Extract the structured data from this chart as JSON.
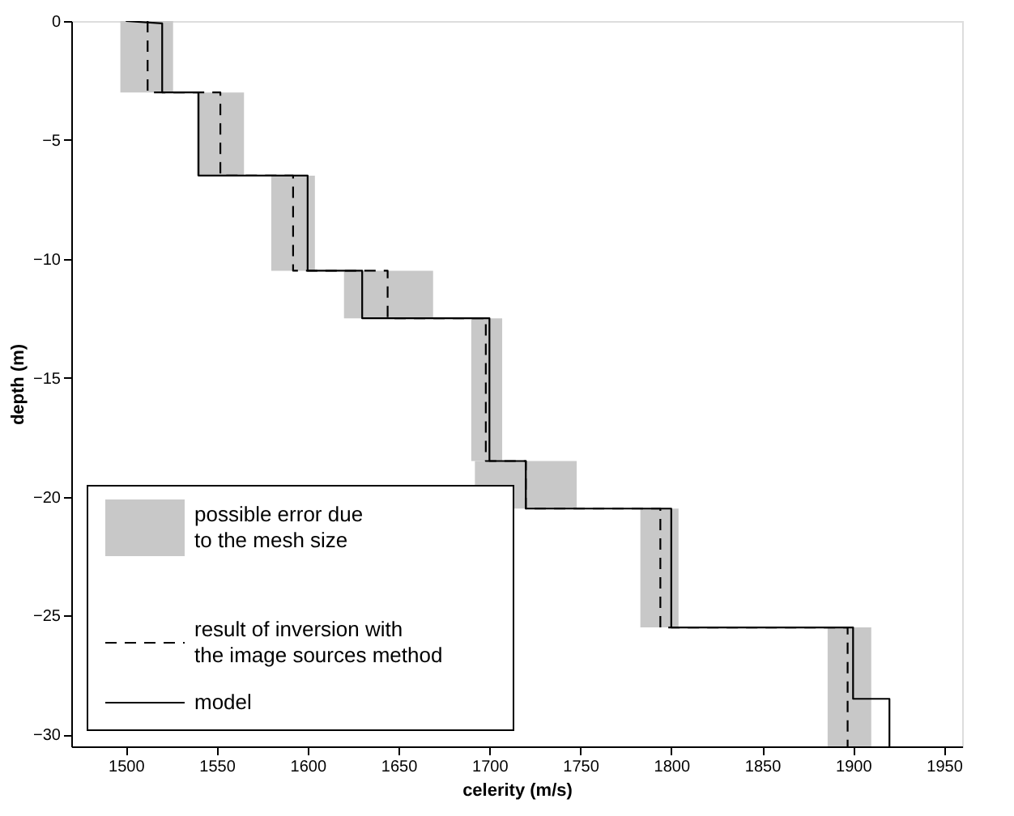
{
  "chart_data": {
    "type": "line",
    "xlabel": "celerity (m/s)",
    "ylabel": "depth (m)",
    "xlim": [
      1470,
      1960
    ],
    "xticks": [
      1500,
      1550,
      1600,
      1650,
      1700,
      1750,
      1800,
      1850,
      1900,
      1950
    ],
    "ylim": [
      -30.5,
      0
    ],
    "yticks": [
      -30,
      -25,
      -20,
      -15,
      -10,
      -5,
      0
    ],
    "grid": false,
    "legend": "bottom left",
    "annotations": [
      "possible error due\nto the mesh size"
    ],
    "series": [
      {
        "name": "result of inversion with\nthe image sources method",
        "color": "#000000",
        "line_style": "dashed",
        "x": [
          1512,
          1512,
          1512,
          1552,
          1552,
          1552,
          1592,
          1592,
          1592,
          1644,
          1644,
          1644,
          1698,
          1698,
          1698,
          1720,
          1720,
          1720,
          1794,
          1794,
          1794,
          1897,
          1897,
          1897
        ],
        "values": [
          0,
          -1.5,
          -3,
          -3,
          -4.75,
          -6.5,
          -6.5,
          -8.5,
          -10.5,
          -10.5,
          -11.5,
          -12.5,
          -12.5,
          -15.5,
          -18.5,
          -18.5,
          -19.5,
          -20.5,
          -20.5,
          -23,
          -25.5,
          -25.5,
          -28,
          -30.5
        ],
        "xerrors": [
          null,
          [
            1497,
            1526
          ],
          null,
          null,
          [
            1539,
            1565
          ],
          null,
          null,
          [
            1580,
            1604
          ],
          null,
          null,
          [
            1620,
            1669
          ],
          null,
          null,
          [
            1690,
            1707
          ],
          null,
          null,
          [
            1692,
            1748
          ],
          null,
          null,
          [
            1783,
            1804
          ],
          null,
          null,
          [
            1886,
            1910
          ],
          null
        ]
      },
      {
        "name": "model",
        "color": "#000000",
        "line_style": "solid",
        "x": [
          1500,
          1520,
          1520,
          1540,
          1540,
          1600,
          1600,
          1630,
          1630,
          1700,
          1700,
          1720,
          1720,
          1800,
          1800,
          1900,
          1900,
          1920,
          1920
        ],
        "values": [
          0,
          -0.1,
          -3,
          -3,
          -6.5,
          -6.5,
          -10.5,
          -10.5,
          -12.5,
          -12.5,
          -18.5,
          -18.5,
          -20.5,
          -20.5,
          -25.5,
          -25.5,
          -28.5,
          -28.5,
          -30.5
        ]
      }
    ]
  }
}
